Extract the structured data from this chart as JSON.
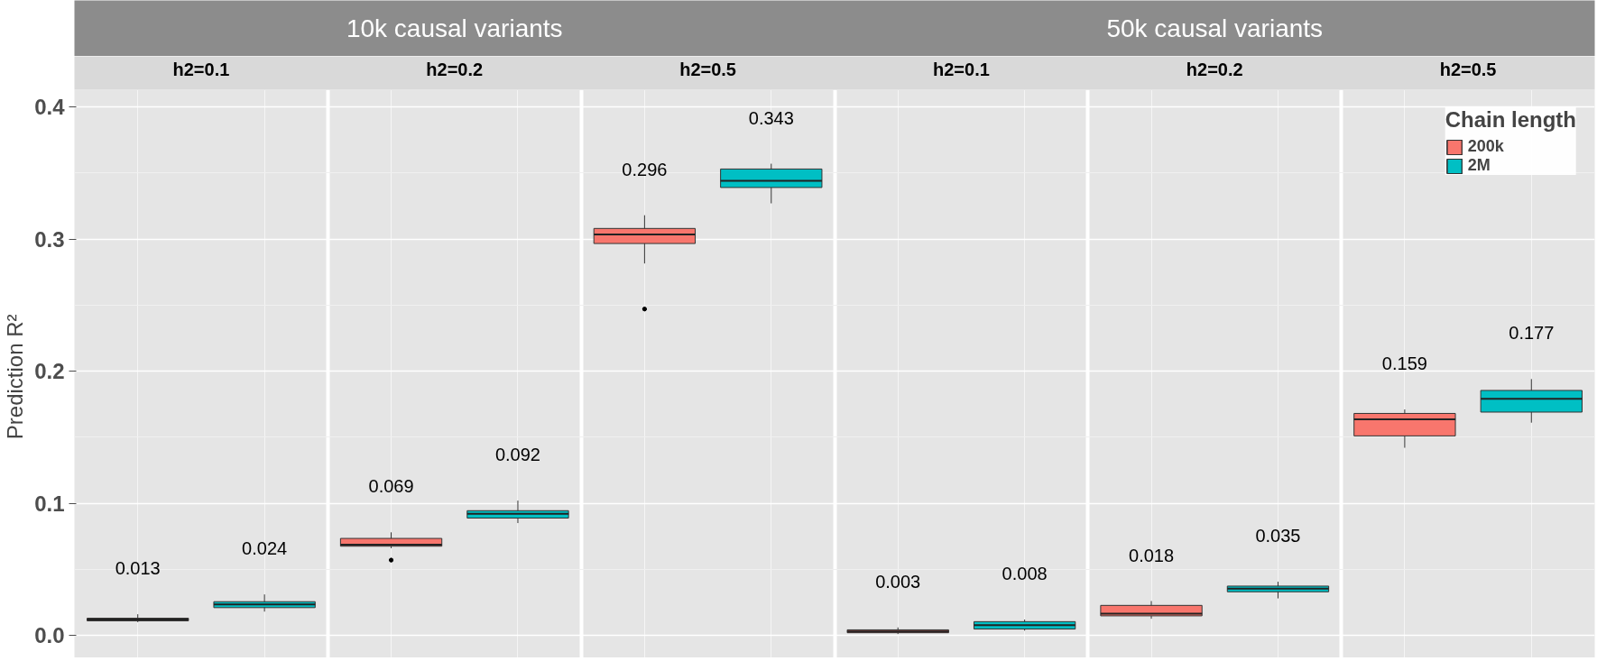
{
  "chart_data": {
    "type": "box",
    "ylabel": "Prediction  R²",
    "categories": [
      "h2=0.1",
      "h2=0.2",
      "h2=0.5",
      "h2=0.1",
      "h2=0.2",
      "h2=0.5"
    ],
    "annotations": [
      "10k causal variants",
      "50k causal variants"
    ],
    "ylim": [
      -0.017,
      0.413
    ],
    "yticks": [
      {
        "value": 0,
        "label": "0.0"
      },
      {
        "value": 0.1,
        "label": "0.1"
      },
      {
        "value": 0.2,
        "label": "0.2"
      },
      {
        "value": 0.3,
        "label": "0.3"
      },
      {
        "value": 0.4,
        "label": "0.4"
      }
    ],
    "grid": true,
    "legend": "top right",
    "legend_title": "Chain length",
    "series": [
      {
        "name": "200k",
        "color": "#f8766d",
        "boxes": [
          {
            "low": 0.01,
            "q1": 0.011,
            "median": 0.012,
            "q3": 0.013,
            "high": 0.016
          },
          {
            "low": 0.066,
            "q1": 0.0675,
            "median": 0.0686,
            "q3": 0.0734,
            "high": 0.078,
            "outliers": [
              0.057,
              0.057
            ]
          },
          {
            "low": 0.2815,
            "q1": 0.2966,
            "median": 0.3034,
            "q3": 0.308,
            "high": 0.318,
            "outliers": [
              0.247,
              0.247
            ]
          },
          {
            "low": 0.001,
            "q1": 0.002,
            "median": 0.003,
            "q3": 0.0042,
            "high": 0.006
          },
          {
            "low": 0.0126,
            "q1": 0.0148,
            "median": 0.0165,
            "q3": 0.0227,
            "high": 0.026
          },
          {
            "low": 0.142,
            "q1": 0.151,
            "median": 0.1636,
            "q3": 0.168,
            "high": 0.171
          }
        ],
        "value_labels": [
          "0.013",
          "0.069",
          "0.296",
          "0.003",
          "0.018",
          "0.159"
        ]
      },
      {
        "name": "2M",
        "color": "#00bfc4",
        "boxes": [
          {
            "low": 0.018,
            "q1": 0.021,
            "median": 0.0235,
            "q3": 0.0255,
            "high": 0.031
          },
          {
            "low": 0.085,
            "q1": 0.0888,
            "median": 0.092,
            "q3": 0.0944,
            "high": 0.102
          },
          {
            "low": 0.327,
            "q1": 0.339,
            "median": 0.344,
            "q3": 0.353,
            "high": 0.357
          },
          {
            "low": 0.0036,
            "q1": 0.0048,
            "median": 0.0078,
            "q3": 0.0104,
            "high": 0.012
          },
          {
            "low": 0.028,
            "q1": 0.033,
            "median": 0.0353,
            "q3": 0.0373,
            "high": 0.0406
          },
          {
            "low": 0.161,
            "q1": 0.169,
            "median": 0.179,
            "q3": 0.1854,
            "high": 0.194
          }
        ],
        "value_labels": [
          "0.024",
          "0.092",
          "0.343",
          "0.008",
          "0.035",
          "0.177"
        ]
      }
    ]
  }
}
